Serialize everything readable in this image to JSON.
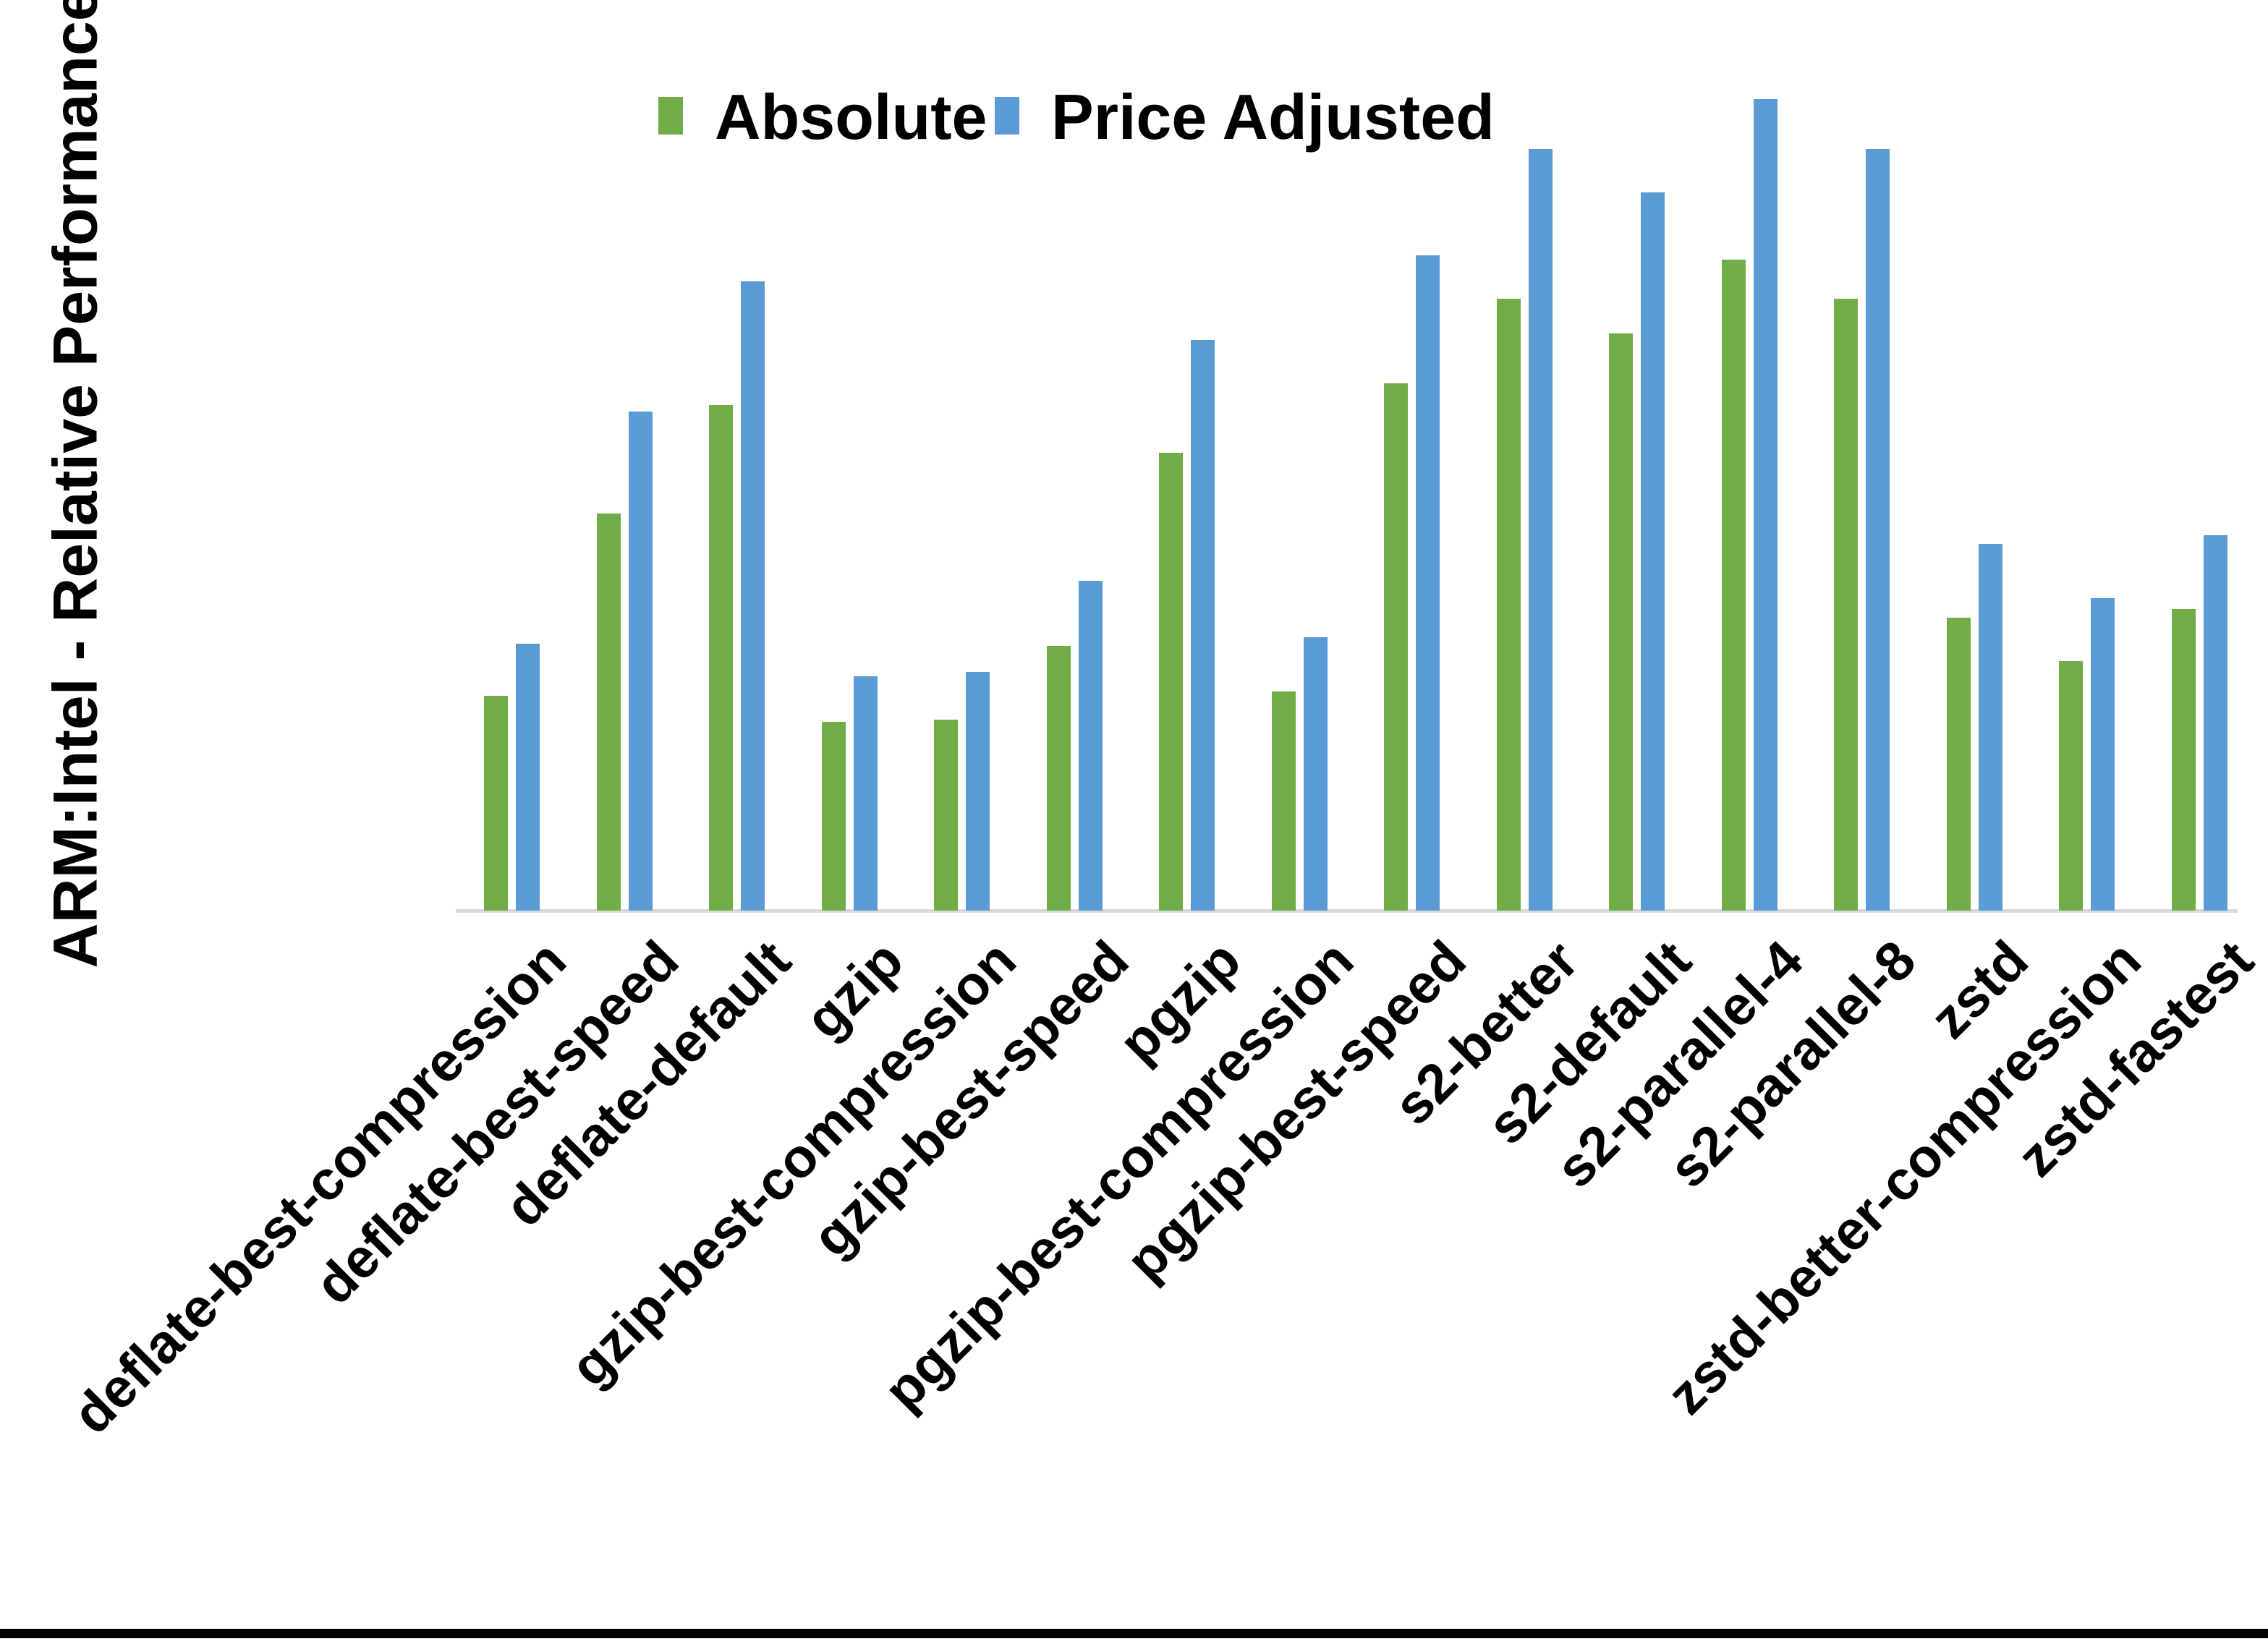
{
  "chart_data": {
    "type": "bar",
    "title": "",
    "ylabel": "ARM:Intel - Relative Performance",
    "xlabel": "",
    "ylim": [
      0.0,
      4.0
    ],
    "ytick_step": 0.5,
    "yticks": [
      "0.0",
      "0.5",
      "1.0",
      "1.5",
      "2.0",
      "2.5",
      "3.0",
      "3.5",
      "4.0"
    ],
    "grid": "off",
    "legend_position": "top-center",
    "categories": [
      "deflate-best-compression",
      "deflate-best-speed",
      "deflate-default",
      "gzip",
      "gzip-best-compression",
      "gzip-best-speed",
      "pgzip",
      "pgzip-best-compression",
      "pgzip-best-speed",
      "s2-better",
      "s2-default",
      "s2-parallel-4",
      "s2-parallel-8",
      "zstd",
      "zstd-better-compression",
      "zstd-fastest"
    ],
    "series": [
      {
        "name": "Absolute",
        "color": "#70AD47",
        "values": [
          0.99,
          1.83,
          2.33,
          0.87,
          0.88,
          1.22,
          2.11,
          1.01,
          2.43,
          2.82,
          2.66,
          3.0,
          2.82,
          1.35,
          1.15,
          1.39
        ]
      },
      {
        "name": "Price Adjusted",
        "color": "#5B9BD5",
        "values": [
          1.23,
          2.3,
          2.9,
          1.08,
          1.1,
          1.52,
          2.63,
          1.26,
          3.02,
          3.51,
          3.31,
          3.74,
          3.51,
          1.69,
          1.44,
          1.73
        ]
      }
    ],
    "axis_line_color": "#D9D9D9",
    "text_color": "#000000"
  }
}
